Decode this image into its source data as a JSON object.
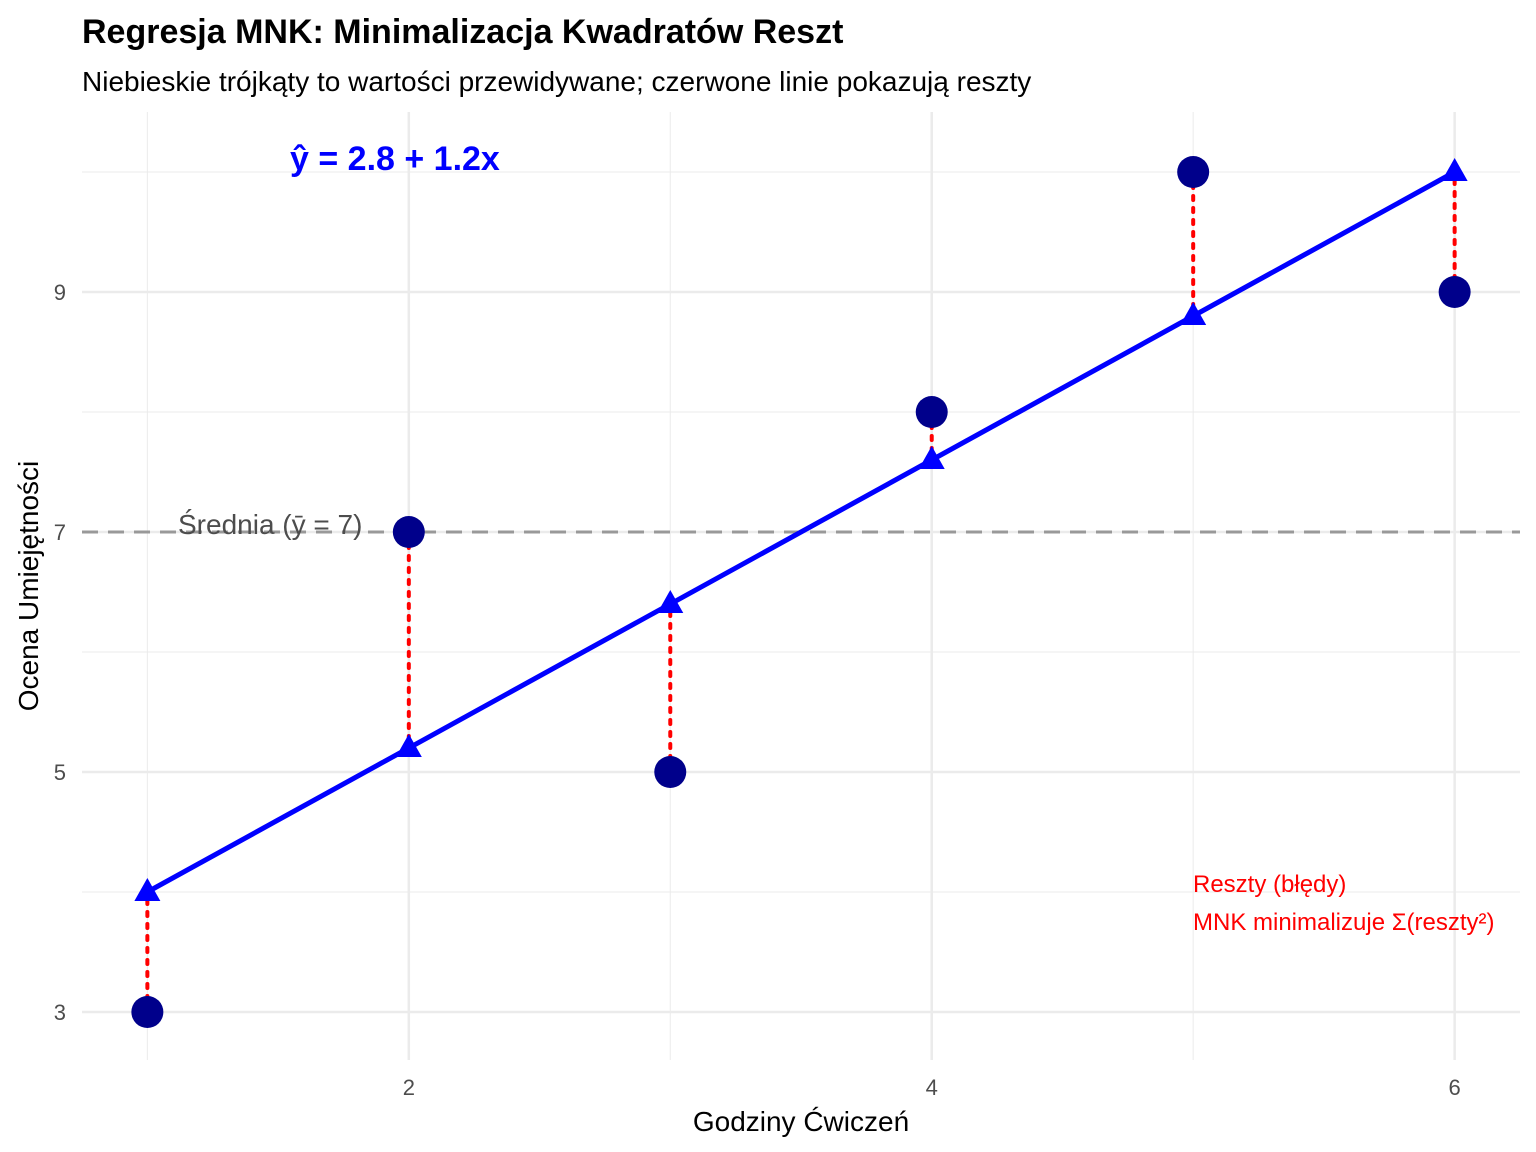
{
  "chart_data": {
    "type": "scatter",
    "title": "Regresja MNK: Minimalizacja Kwadratów Reszt",
    "subtitle": "Niebieskie trójkąty to wartości przewidywane; czerwone linie pokazują reszty",
    "xlabel": "Godziny Ćwiczeń",
    "ylabel": "Ocena Umiejętności",
    "xlim": [
      0.75,
      6.25
    ],
    "ylim": [
      2.6,
      10.5
    ],
    "x_ticks": [
      2,
      4,
      6
    ],
    "y_ticks": [
      3,
      5,
      7,
      9
    ],
    "grid": true,
    "x": [
      1,
      2,
      3,
      4,
      5,
      6
    ],
    "observed": [
      3,
      7,
      5,
      8,
      10,
      9
    ],
    "predicted": [
      4.0,
      5.2,
      6.4,
      7.6,
      8.8,
      10.0
    ],
    "intercept": 2.8,
    "slope": 1.2,
    "mean_y": 7,
    "annotations": {
      "equation": "ŷ = 2.8 + 1.2x",
      "mean_label": "Średnia (ȳ = 7)",
      "residual_line1": "Reszty (błędy)",
      "residual_line2": "MNK minimalizuje Σ(reszty²)"
    },
    "colors": {
      "observed": "#00008b",
      "predicted": "#0000ff",
      "regression_line": "#0000ff",
      "residuals": "#ff0000",
      "mean_line": "#999999",
      "grid": "#ebebeb"
    }
  }
}
